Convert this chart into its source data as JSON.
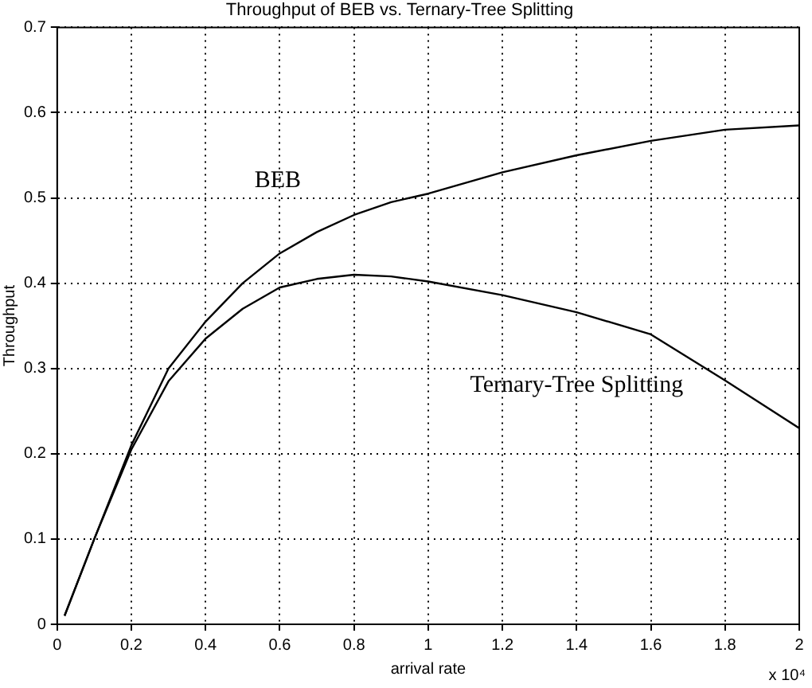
{
  "chart_data": {
    "type": "line",
    "title": "Throughput of BEB vs. Ternary-Tree Splitting",
    "xlabel": "arrival rate",
    "ylabel": "Throughput",
    "annotations": [
      "x 10⁴"
    ],
    "x": [
      0.02,
      0.1,
      0.2,
      0.3,
      0.4,
      0.5,
      0.6,
      0.7,
      0.8,
      0.9,
      1.0,
      1.2,
      1.4,
      1.6,
      1.8,
      2.0
    ],
    "series": [
      {
        "name": "BEB",
        "color": "#000000",
        "values": [
          0.01,
          0.1,
          0.21,
          0.3,
          0.355,
          0.4,
          0.435,
          0.46,
          0.48,
          0.495,
          0.505,
          0.53,
          0.55,
          0.567,
          0.58,
          0.585
        ]
      },
      {
        "name": "Ternary-Tree Splitting",
        "color": "#000000",
        "values": [
          0.01,
          0.1,
          0.205,
          0.285,
          0.335,
          0.37,
          0.395,
          0.405,
          0.41,
          0.408,
          0.402,
          0.386,
          0.366,
          0.34,
          0.286,
          0.23
        ]
      }
    ],
    "xlim": [
      0,
      2
    ],
    "ylim": [
      0,
      0.7
    ],
    "xticks": [
      0,
      0.2,
      0.4,
      0.6,
      0.8,
      1,
      1.2,
      1.4,
      1.6,
      1.8,
      2
    ],
    "yticks": [
      0,
      0.1,
      0.2,
      0.3,
      0.4,
      0.5,
      0.6,
      0.7
    ],
    "grid": true,
    "marker": "none",
    "line_style": "solid"
  }
}
